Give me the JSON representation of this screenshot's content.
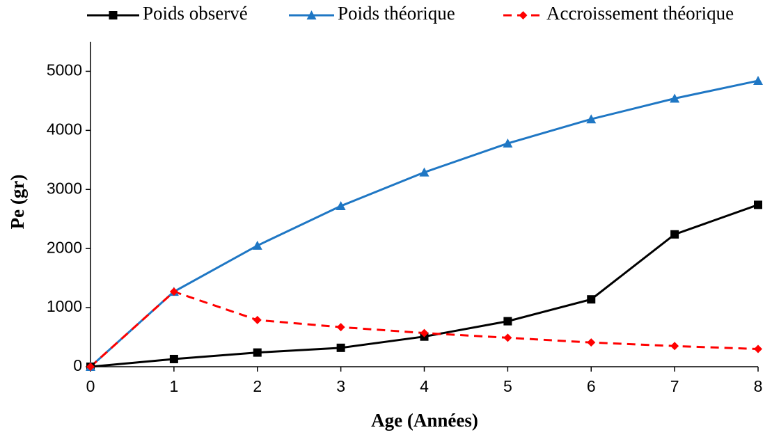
{
  "chart_data": {
    "type": "line",
    "x_label": "Age (Années)",
    "y_label": "Pe (gr)",
    "x": [
      0,
      1,
      2,
      3,
      4,
      5,
      6,
      7,
      8
    ],
    "xlim": [
      0,
      8
    ],
    "xticks": [
      0,
      1,
      2,
      3,
      4,
      5,
      6,
      7,
      8
    ],
    "ylim": [
      0,
      5500
    ],
    "yticks": [
      0,
      1000,
      2000,
      3000,
      4000,
      5000
    ],
    "grid": false,
    "legend": "top",
    "series": [
      {
        "name": "Poids observé",
        "color": "#000000",
        "marker": "square",
        "dashed": false,
        "values": [
          0,
          130,
          240,
          320,
          510,
          770,
          1140,
          2240,
          2740
        ]
      },
      {
        "name": "Poids théorique",
        "color": "#1f77c4",
        "marker": "triangle",
        "dashed": false,
        "values": [
          0,
          1270,
          2050,
          2720,
          3290,
          3780,
          4190,
          4540,
          4840
        ]
      },
      {
        "name": "Accroissement théorique",
        "color": "#ff0000",
        "marker": "diamond",
        "dashed": true,
        "values": [
          0,
          1270,
          790,
          670,
          570,
          490,
          410,
          350,
          300
        ]
      }
    ]
  }
}
